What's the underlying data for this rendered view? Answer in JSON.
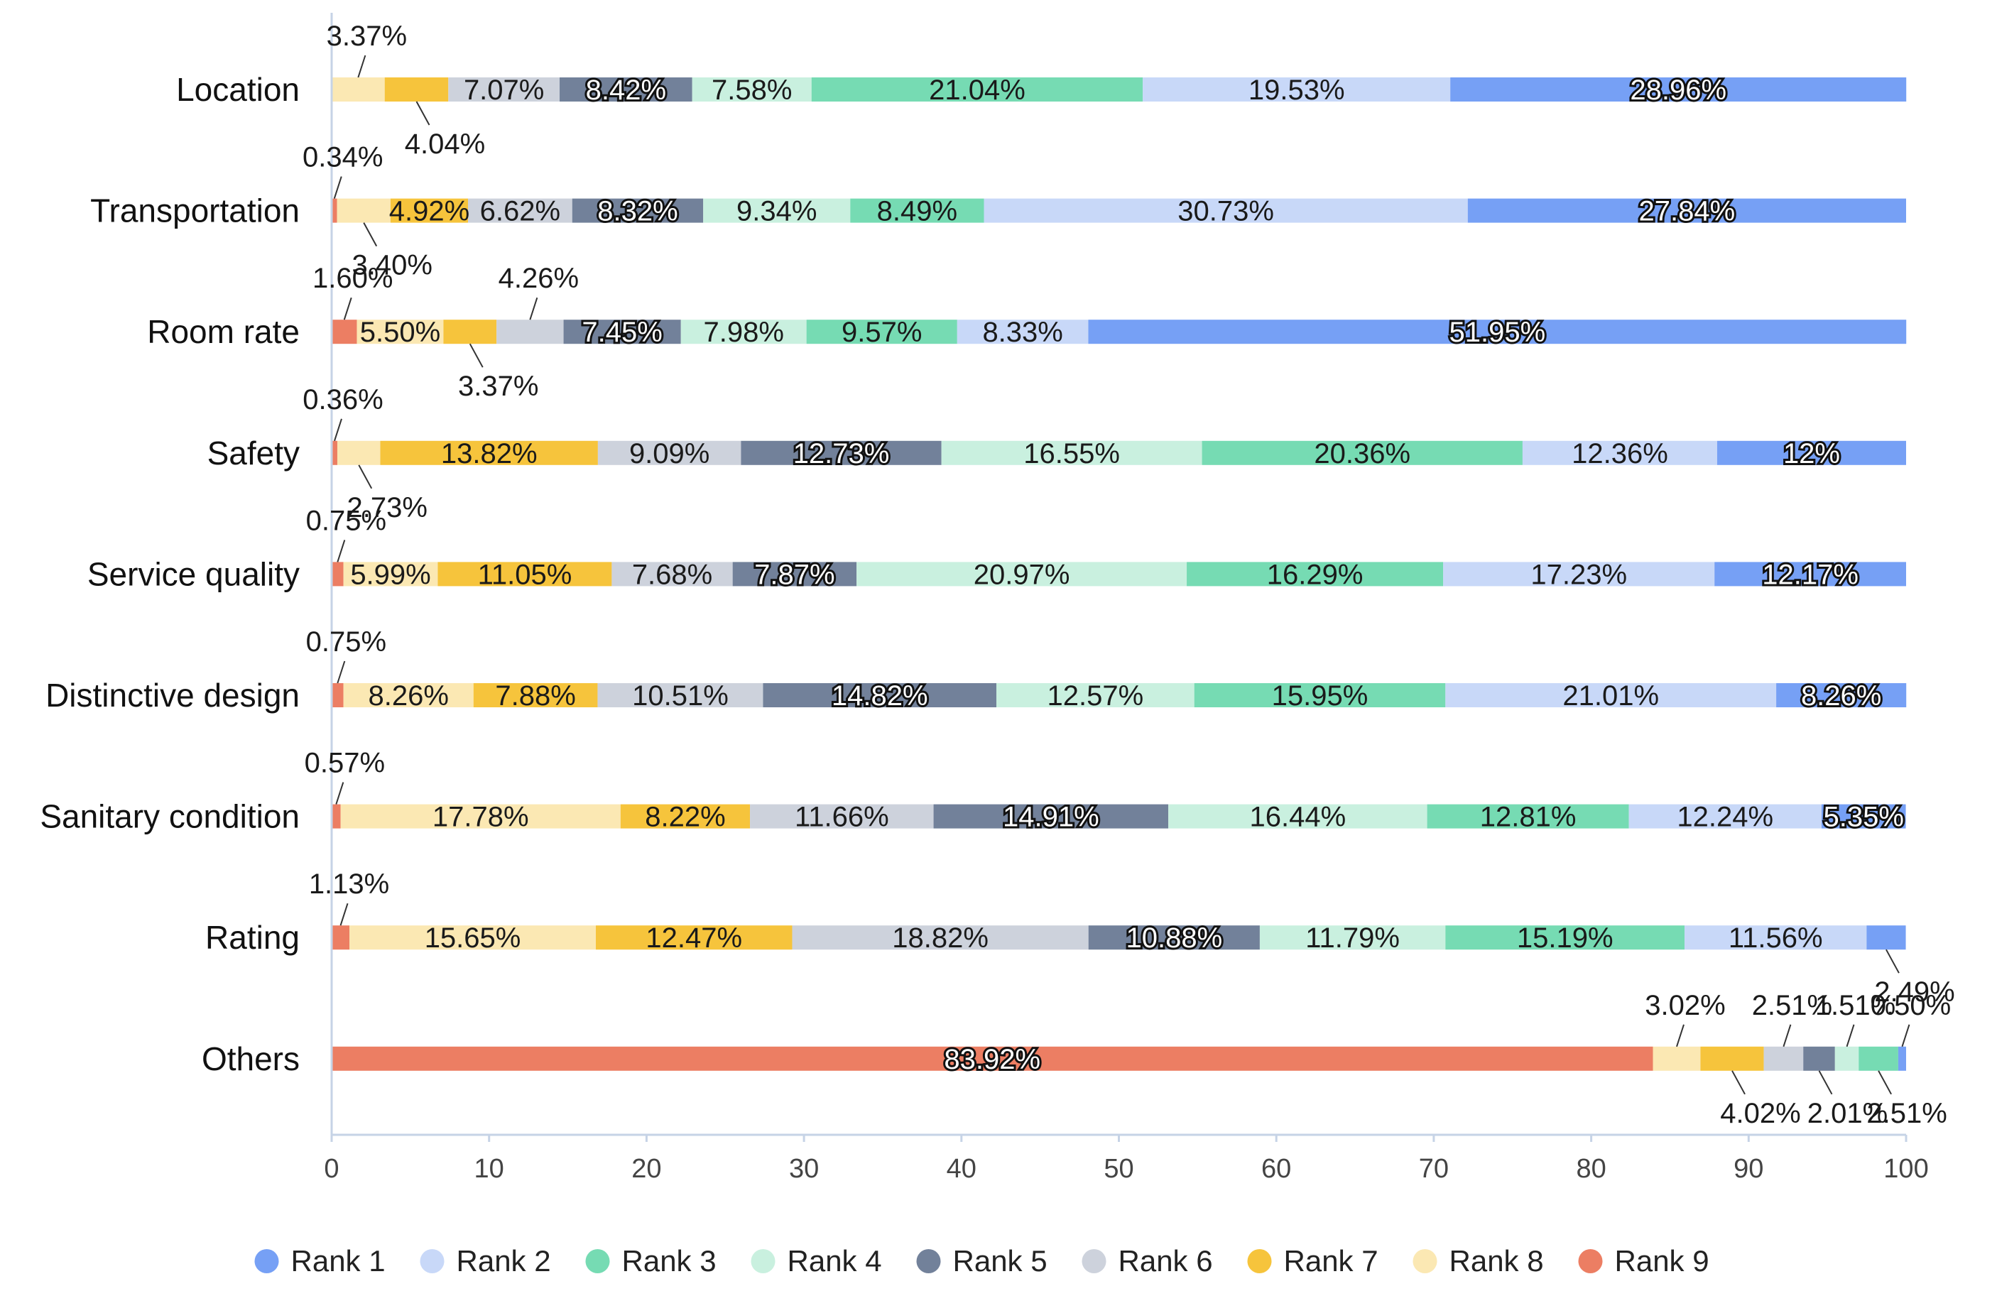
{
  "chart_data": {
    "type": "bar",
    "orientation": "horizontal",
    "stacked": true,
    "title": "",
    "xlabel": "",
    "ylabel": "",
    "xlim": [
      0,
      100
    ],
    "xticks": [
      0,
      10,
      20,
      30,
      40,
      50,
      60,
      70,
      80,
      90,
      100
    ],
    "grid": false,
    "legend_position": "bottom",
    "categories": [
      "Location",
      "Transportation",
      "Room rate",
      "Safety",
      "Service quality",
      "Distinctive design",
      "Sanitary condition",
      "Rating",
      "Others"
    ],
    "series": [
      {
        "name": "Rank 9",
        "color": "#ec7e63",
        "values": [
          0,
          0.34,
          1.6,
          0.36,
          0.75,
          0.75,
          0.57,
          1.13,
          83.92
        ],
        "labels": [
          "",
          "0.34%",
          "1.60%",
          "0.36%",
          "0.75%",
          "0.75%",
          "0.57%",
          "1.13%",
          "83.92%"
        ]
      },
      {
        "name": "Rank 8",
        "color": "#fbe8b3",
        "values": [
          3.37,
          3.4,
          5.5,
          2.73,
          5.99,
          8.26,
          17.78,
          15.65,
          3.02
        ],
        "labels": [
          "3.37%",
          "3.40%",
          "5.50%",
          "2.73%",
          "5.99%",
          "8.26%",
          "17.78%",
          "15.65%",
          "3.02%"
        ]
      },
      {
        "name": "Rank 7",
        "color": "#f6c43c",
        "values": [
          4.04,
          4.92,
          3.37,
          13.82,
          11.05,
          7.88,
          8.22,
          12.47,
          4.02
        ],
        "labels": [
          "4.04%",
          "4.92%",
          "3.37%",
          "13.82%",
          "11.05%",
          "7.88%",
          "8.22%",
          "12.47%",
          "4.02%"
        ]
      },
      {
        "name": "Rank 6",
        "color": "#cdd2dc",
        "values": [
          7.07,
          6.62,
          4.26,
          9.09,
          7.68,
          10.51,
          11.66,
          18.82,
          2.51
        ],
        "labels": [
          "7.07%",
          "6.62%",
          "4.26%",
          "9.09%",
          "7.68%",
          "10.51%",
          "11.66%",
          "18.82%",
          "2.51%"
        ]
      },
      {
        "name": "Rank 5",
        "color": "#72819a",
        "values": [
          8.42,
          8.32,
          7.45,
          12.73,
          7.87,
          14.82,
          14.91,
          10.88,
          2.01
        ],
        "labels": [
          "8.42%",
          "8.32%",
          "7.45%",
          "12.73%",
          "7.87%",
          "14.82%",
          "14.91%",
          "10.88%",
          "2.01%"
        ]
      },
      {
        "name": "Rank 4",
        "color": "#c9f0df",
        "values": [
          7.58,
          9.34,
          7.98,
          16.55,
          20.97,
          12.57,
          16.44,
          11.79,
          1.51
        ],
        "labels": [
          "7.58%",
          "9.34%",
          "7.98%",
          "16.55%",
          "20.97%",
          "12.57%",
          "16.44%",
          "11.79%",
          "1.51%"
        ]
      },
      {
        "name": "Rank 3",
        "color": "#76dbb3",
        "values": [
          21.04,
          8.49,
          9.57,
          20.36,
          16.29,
          15.95,
          12.81,
          15.19,
          2.51
        ],
        "labels": [
          "21.04%",
          "8.49%",
          "9.57%",
          "20.36%",
          "16.29%",
          "15.95%",
          "12.81%",
          "15.19%",
          "2.51%"
        ]
      },
      {
        "name": "Rank 2",
        "color": "#c8d8f8",
        "values": [
          19.53,
          30.73,
          8.33,
          12.36,
          17.23,
          21.01,
          12.24,
          11.56,
          0
        ],
        "labels": [
          "19.53%",
          "30.73%",
          "8.33%",
          "12.36%",
          "17.23%",
          "21.01%",
          "12.24%",
          "11.56%",
          ""
        ]
      },
      {
        "name": "Rank 1",
        "color": "#76a0f5",
        "values": [
          28.96,
          27.84,
          51.95,
          12,
          12.17,
          8.26,
          5.35,
          2.49,
          0.5
        ],
        "labels": [
          "28.96%",
          "27.84%",
          "51.95%",
          "12%",
          "12.17%",
          "8.26%",
          "5.35%",
          "2.49%",
          "0.50%"
        ]
      }
    ],
    "legend_order": [
      "Rank 1",
      "Rank 2",
      "Rank 3",
      "Rank 4",
      "Rank 5",
      "Rank 6",
      "Rank 7",
      "Rank 8",
      "Rank 9"
    ]
  }
}
